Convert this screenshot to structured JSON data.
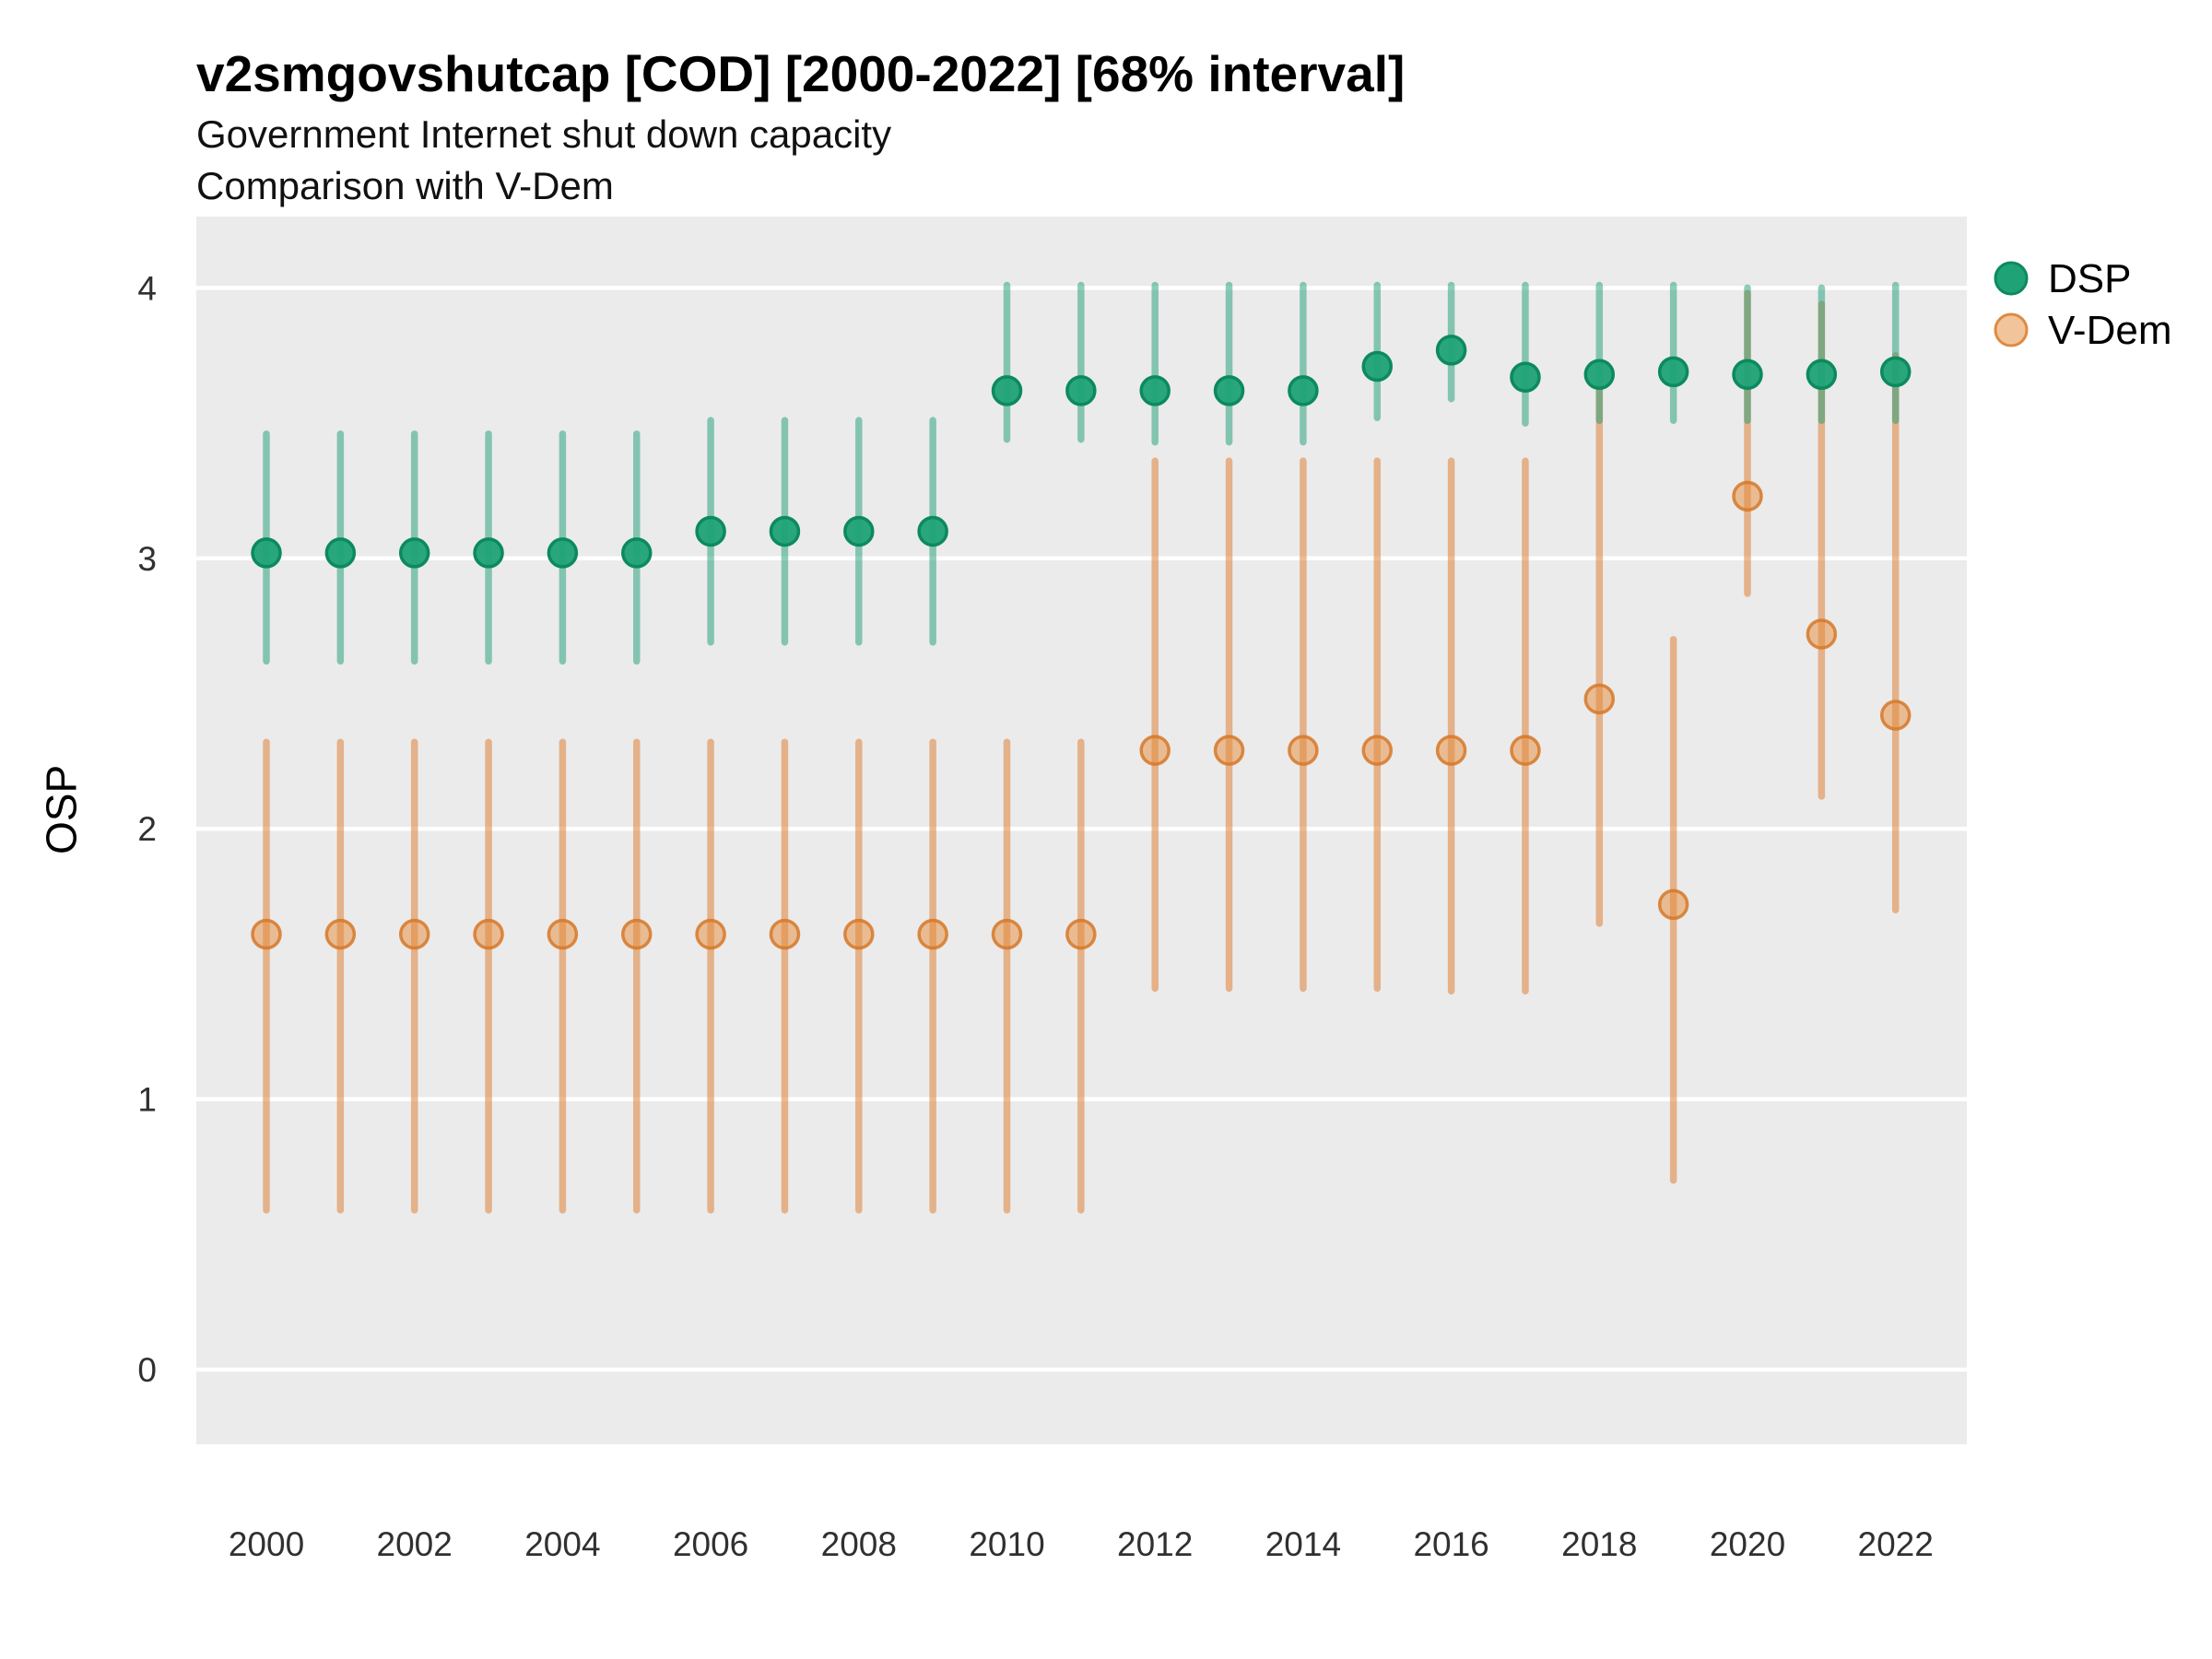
{
  "chart_data": {
    "type": "pointrange",
    "title": "v2smgovshutcap [COD] [2000-2022] [68% interval]",
    "subtitle": "Government Internet shut down capacity",
    "subtitle2": "Comparison with V-Dem",
    "ylabel": "OSP",
    "xlabel": "",
    "ylim": [
      -0.28,
      4.28
    ],
    "yticks": [
      0,
      1,
      2,
      3,
      4
    ],
    "xticks": [
      2000,
      2002,
      2004,
      2006,
      2008,
      2010,
      2012,
      2014,
      2016,
      2018,
      2020,
      2022
    ],
    "grid": "major horizontal white lines on gray panel",
    "legend_position": "right",
    "panel_bg": "#EBEBEB",
    "legend": [
      {
        "label": "DSP",
        "dot_fill": "#1FA276",
        "dot_stroke": "#0C8A5E"
      },
      {
        "label": "V-Dem",
        "dot_fill": "#F2C49C",
        "dot_stroke": "#DD8B42"
      }
    ],
    "colors": {
      "dsp_point_fill": "#1FA276",
      "dsp_point_stroke": "#0C8A5E",
      "dsp_interval": "rgba(27,158,119,0.5)",
      "vdem_point_fill": "rgba(230,140,60,0.5)",
      "vdem_point_stroke": "rgba(214,120,40,0.85)",
      "vdem_interval": "rgba(222,130,56,0.55)"
    },
    "x": [
      2000,
      2001,
      2002,
      2003,
      2004,
      2005,
      2006,
      2007,
      2008,
      2009,
      2010,
      2011,
      2012,
      2013,
      2014,
      2015,
      2016,
      2017,
      2018,
      2019,
      2020,
      2021,
      2022
    ],
    "series": [
      {
        "name": "V-Dem",
        "points": [
          {
            "year": 2000,
            "est": 1.61,
            "lo": 0.59,
            "hi": 2.32
          },
          {
            "year": 2001,
            "est": 1.61,
            "lo": 0.59,
            "hi": 2.32
          },
          {
            "year": 2002,
            "est": 1.61,
            "lo": 0.59,
            "hi": 2.32
          },
          {
            "year": 2003,
            "est": 1.61,
            "lo": 0.59,
            "hi": 2.32
          },
          {
            "year": 2004,
            "est": 1.61,
            "lo": 0.59,
            "hi": 2.32
          },
          {
            "year": 2005,
            "est": 1.61,
            "lo": 0.59,
            "hi": 2.32
          },
          {
            "year": 2006,
            "est": 1.61,
            "lo": 0.59,
            "hi": 2.32
          },
          {
            "year": 2007,
            "est": 1.61,
            "lo": 0.59,
            "hi": 2.32
          },
          {
            "year": 2008,
            "est": 1.61,
            "lo": 0.59,
            "hi": 2.32
          },
          {
            "year": 2009,
            "est": 1.61,
            "lo": 0.59,
            "hi": 2.32
          },
          {
            "year": 2010,
            "est": 1.61,
            "lo": 0.59,
            "hi": 2.32
          },
          {
            "year": 2011,
            "est": 1.61,
            "lo": 0.59,
            "hi": 2.32
          },
          {
            "year": 2012,
            "est": 2.29,
            "lo": 1.41,
            "hi": 3.36
          },
          {
            "year": 2013,
            "est": 2.29,
            "lo": 1.41,
            "hi": 3.36
          },
          {
            "year": 2014,
            "est": 2.29,
            "lo": 1.41,
            "hi": 3.36
          },
          {
            "year": 2015,
            "est": 2.29,
            "lo": 1.41,
            "hi": 3.36
          },
          {
            "year": 2016,
            "est": 2.29,
            "lo": 1.4,
            "hi": 3.36
          },
          {
            "year": 2017,
            "est": 2.29,
            "lo": 1.4,
            "hi": 3.36
          },
          {
            "year": 2018,
            "est": 2.48,
            "lo": 1.65,
            "hi": 3.63
          },
          {
            "year": 2019,
            "est": 1.72,
            "lo": 0.7,
            "hi": 2.7
          },
          {
            "year": 2020,
            "est": 3.23,
            "lo": 2.87,
            "hi": 3.98
          },
          {
            "year": 2021,
            "est": 2.72,
            "lo": 2.12,
            "hi": 3.94
          },
          {
            "year": 2022,
            "est": 2.42,
            "lo": 1.7,
            "hi": 3.75
          }
        ]
      },
      {
        "name": "DSP",
        "points": [
          {
            "year": 2000,
            "est": 3.02,
            "lo": 2.62,
            "hi": 3.46
          },
          {
            "year": 2001,
            "est": 3.02,
            "lo": 2.62,
            "hi": 3.46
          },
          {
            "year": 2002,
            "est": 3.02,
            "lo": 2.62,
            "hi": 3.46
          },
          {
            "year": 2003,
            "est": 3.02,
            "lo": 2.62,
            "hi": 3.46
          },
          {
            "year": 2004,
            "est": 3.02,
            "lo": 2.62,
            "hi": 3.46
          },
          {
            "year": 2005,
            "est": 3.02,
            "lo": 2.62,
            "hi": 3.46
          },
          {
            "year": 2006,
            "est": 3.1,
            "lo": 2.69,
            "hi": 3.51
          },
          {
            "year": 2007,
            "est": 3.1,
            "lo": 2.69,
            "hi": 3.51
          },
          {
            "year": 2008,
            "est": 3.1,
            "lo": 2.69,
            "hi": 3.51
          },
          {
            "year": 2009,
            "est": 3.1,
            "lo": 2.69,
            "hi": 3.51
          },
          {
            "year": 2010,
            "est": 3.62,
            "lo": 3.44,
            "hi": 4.01
          },
          {
            "year": 2011,
            "est": 3.62,
            "lo": 3.44,
            "hi": 4.01
          },
          {
            "year": 2012,
            "est": 3.62,
            "lo": 3.43,
            "hi": 4.01
          },
          {
            "year": 2013,
            "est": 3.62,
            "lo": 3.43,
            "hi": 4.01
          },
          {
            "year": 2014,
            "est": 3.62,
            "lo": 3.43,
            "hi": 4.01
          },
          {
            "year": 2015,
            "est": 3.71,
            "lo": 3.52,
            "hi": 4.01
          },
          {
            "year": 2016,
            "est": 3.77,
            "lo": 3.59,
            "hi": 4.01
          },
          {
            "year": 2017,
            "est": 3.67,
            "lo": 3.5,
            "hi": 4.01
          },
          {
            "year": 2018,
            "est": 3.68,
            "lo": 3.51,
            "hi": 4.01
          },
          {
            "year": 2019,
            "est": 3.69,
            "lo": 3.51,
            "hi": 4.01
          },
          {
            "year": 2020,
            "est": 3.68,
            "lo": 3.51,
            "hi": 4.0
          },
          {
            "year": 2021,
            "est": 3.68,
            "lo": 3.51,
            "hi": 4.0
          },
          {
            "year": 2022,
            "est": 3.69,
            "lo": 3.51,
            "hi": 4.01
          }
        ]
      }
    ]
  }
}
